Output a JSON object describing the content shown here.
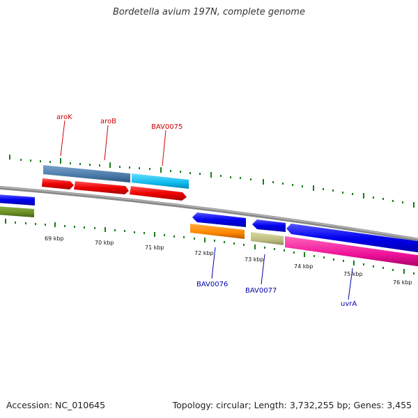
{
  "title": "Bordetella avium 197N, complete genome",
  "footer": {
    "accession": "Accession: NC_010645",
    "summary": "Topology: circular; Length: 3,732,255 bp; Genes: 3,455"
  },
  "scale": {
    "unit": "kbp",
    "ticks": [
      "69 kbp",
      "70 kbp",
      "71 kbp",
      "72 kbp",
      "73 kbp",
      "74 kbp",
      "75 kbp",
      "76 kbp"
    ]
  },
  "gene_labels": {
    "forward": [
      {
        "text": "aroK",
        "color": "#cc0000"
      },
      {
        "text": "aroB",
        "color": "#cc0000"
      },
      {
        "text": "BAV0075",
        "color": "#cc0000"
      }
    ],
    "reverse": [
      {
        "text": "BAV0076",
        "color": "#0000aa"
      },
      {
        "text": "BAV0077",
        "color": "#0000aa"
      },
      {
        "text": "uvrA",
        "color": "#0000aa"
      }
    ]
  },
  "colors": {
    "backbone": "#888888",
    "tick": "#1a7a1a",
    "forward_label": "#cc0000",
    "reverse_label": "#0000aa"
  }
}
